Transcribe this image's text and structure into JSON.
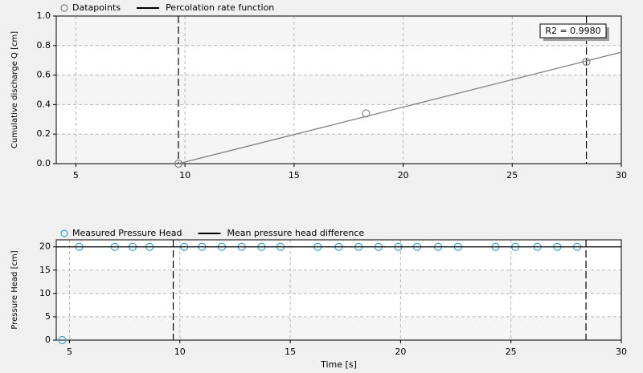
{
  "chart_data": [
    {
      "type": "scatter",
      "ylabel": "Cumulative discharge Q [cm]",
      "xlim": [
        4.1,
        30
      ],
      "xticks": [
        5,
        10,
        15,
        20,
        25,
        30
      ],
      "ylim": [
        0,
        1
      ],
      "yticks": [
        {
          "value": 0,
          "label": "0.0"
        },
        0.2,
        0.4,
        0.6,
        0.8,
        {
          "value": 1,
          "label": "1.0"
        }
      ],
      "grid": true,
      "vlines": [
        9.7,
        28.4
      ],
      "annotation": "R2 = 0.9980",
      "series": [
        {
          "name": "Datapoints",
          "style": "markers",
          "color": "#808080",
          "x": [
            9.7,
            18.3,
            28.4
          ],
          "values": [
            0.0,
            0.34,
            0.69
          ]
        },
        {
          "name": "Percolation rate function",
          "style": "line",
          "color": "#808080",
          "legend_color": "#000000",
          "x": [
            9.7,
            30
          ],
          "values": [
            0.0,
            0.755
          ]
        }
      ]
    },
    {
      "type": "scatter",
      "ylabel": "Pressure Head [cm]",
      "xlabel": "Time [s]",
      "xlim": [
        4.4,
        30
      ],
      "xticks": [
        5,
        10,
        15,
        20,
        25,
        30
      ],
      "ylim": [
        0,
        21.5
      ],
      "yticks": [
        0,
        5,
        10,
        15,
        20
      ],
      "grid": true,
      "vlines": [
        9.7,
        28.4
      ],
      "series": [
        {
          "name": "Measured Pressure Head",
          "style": "markers",
          "color": "#3aa6d8",
          "x": [
            4.67,
            5.44,
            7.05,
            7.86,
            8.63,
            10.2,
            11.0,
            11.9,
            12.8,
            13.7,
            14.56,
            16.25,
            17.2,
            18.1,
            19.0,
            19.9,
            20.75,
            21.7,
            22.6,
            24.3,
            25.2,
            26.2,
            27.1,
            28.0
          ],
          "values": [
            0,
            20,
            20,
            20,
            20,
            20,
            20,
            20,
            20,
            20,
            20,
            20,
            20,
            20,
            20,
            20,
            20,
            20,
            20,
            20,
            20,
            20,
            20,
            20
          ]
        },
        {
          "name": "Mean pressure head difference",
          "style": "line",
          "color": "#000000",
          "x": [
            4.4,
            30
          ],
          "values": [
            20,
            20
          ]
        }
      ]
    }
  ]
}
